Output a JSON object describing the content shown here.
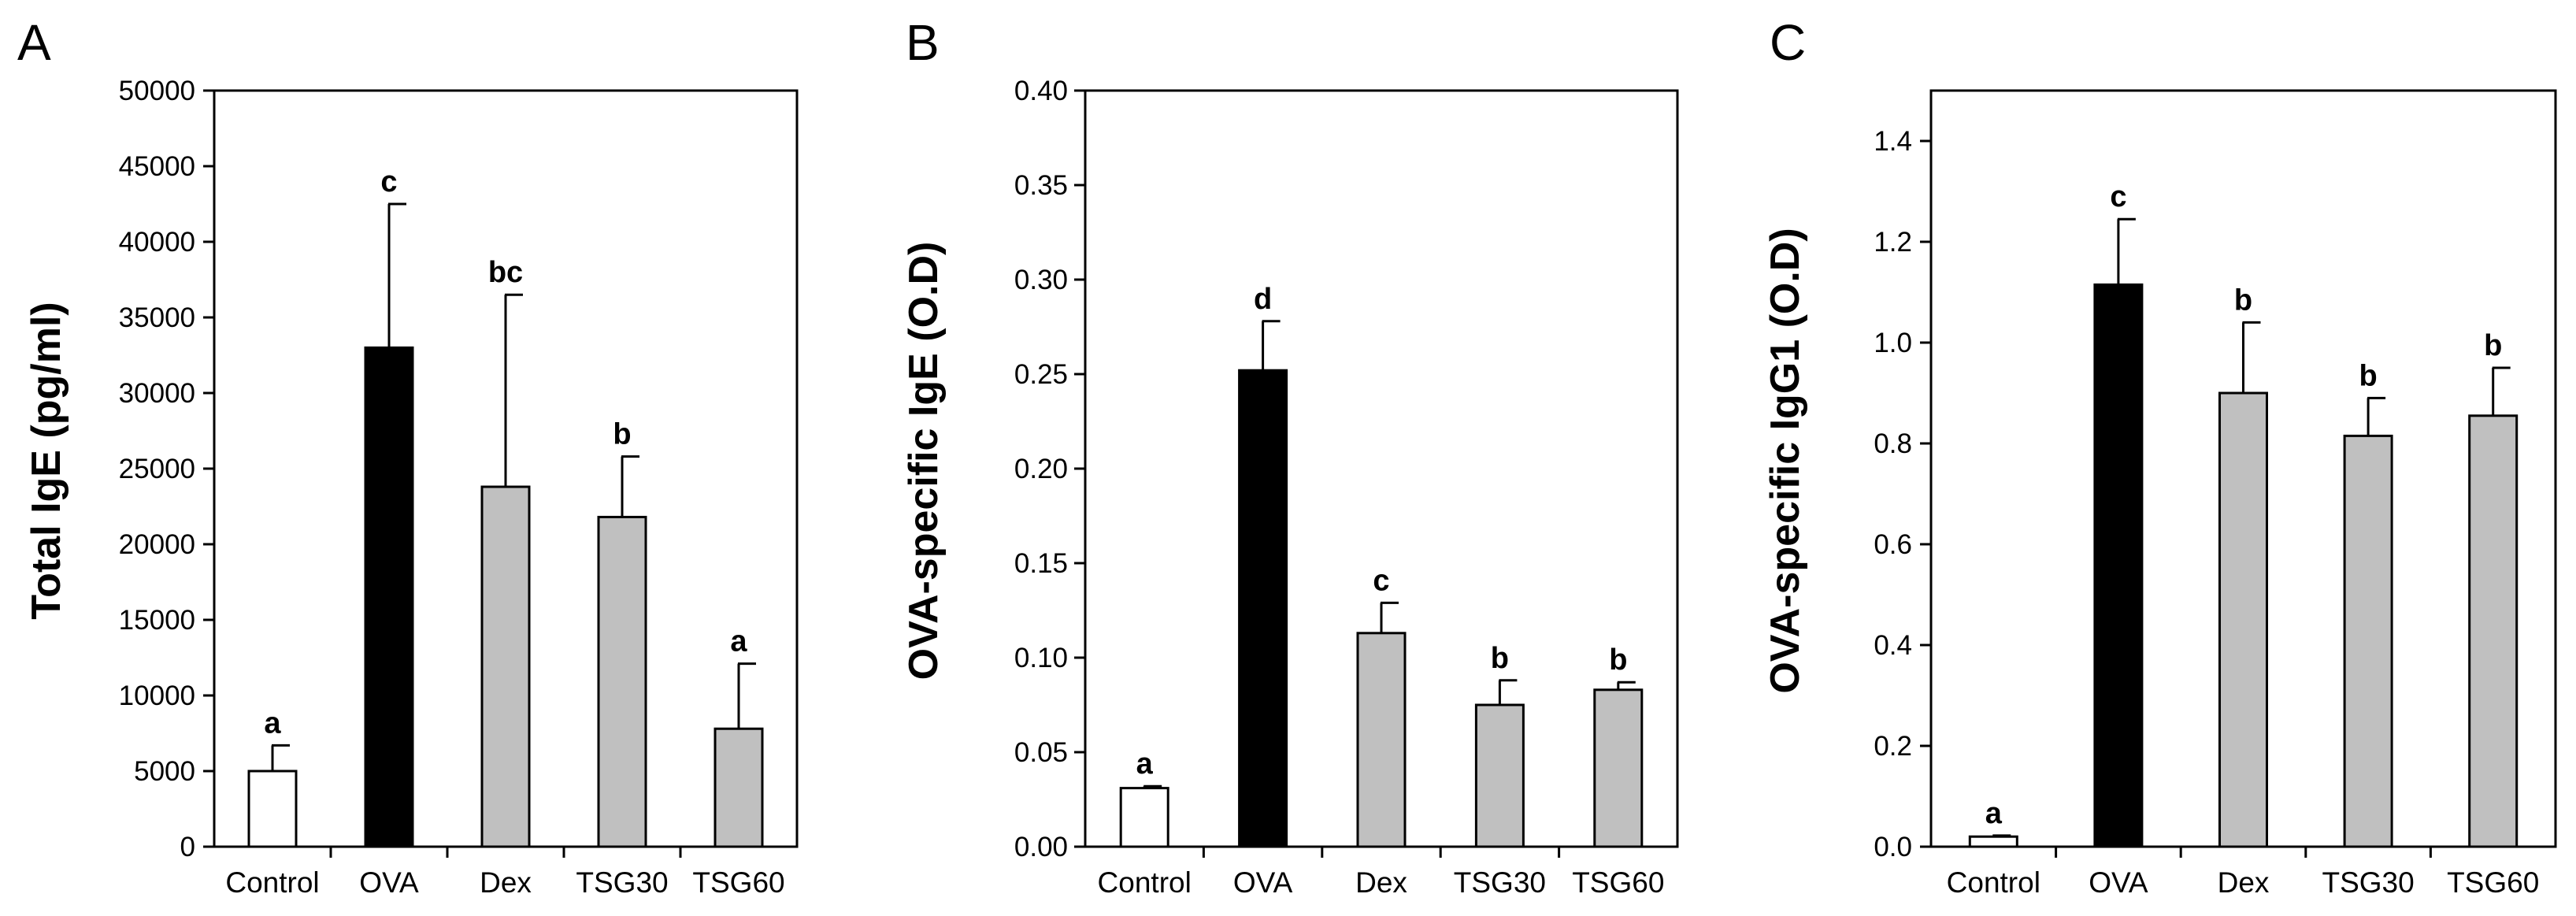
{
  "chart_data": [
    {
      "panel": "A",
      "type": "bar",
      "title": "",
      "xlabel": "",
      "ylabel": "Total IgE (pg/ml)",
      "categories": [
        "Control",
        "OVA",
        "Dex",
        "TSG30",
        "TSG60"
      ],
      "values": [
        5000,
        33000,
        23800,
        21800,
        7800
      ],
      "errors": [
        1700,
        9500,
        12700,
        4000,
        4300
      ],
      "letters": [
        "a",
        "c",
        "bc",
        "b",
        "a"
      ],
      "bar_colors": [
        "#ffffff",
        "#000000",
        "#c0c0c0",
        "#c0c0c0",
        "#c0c0c0"
      ],
      "ylim": [
        0,
        50000
      ],
      "yticks": [
        0,
        5000,
        10000,
        15000,
        20000,
        25000,
        30000,
        35000,
        40000,
        45000,
        50000
      ],
      "ytick_labels": [
        "0",
        "5000",
        "10000",
        "15000",
        "20000",
        "25000",
        "30000",
        "35000",
        "40000",
        "45000",
        "50000"
      ]
    },
    {
      "panel": "B",
      "type": "bar",
      "title": "",
      "xlabel": "",
      "ylabel": "OVA-specific IgE (O.D)",
      "categories": [
        "Control",
        "OVA",
        "Dex",
        "TSG30",
        "TSG60"
      ],
      "values": [
        0.031,
        0.252,
        0.113,
        0.075,
        0.083
      ],
      "errors": [
        0.001,
        0.026,
        0.016,
        0.013,
        0.004
      ],
      "letters": [
        "a",
        "d",
        "c",
        "b",
        "b"
      ],
      "bar_colors": [
        "#ffffff",
        "#000000",
        "#c0c0c0",
        "#c0c0c0",
        "#c0c0c0"
      ],
      "ylim": [
        0,
        0.4
      ],
      "yticks": [
        0,
        0.05,
        0.1,
        0.15,
        0.2,
        0.25,
        0.3,
        0.35,
        0.4
      ],
      "ytick_labels": [
        "0.00",
        "0.05",
        "0.10",
        "0.15",
        "0.20",
        "0.25",
        "0.30",
        "0.35",
        "0.40"
      ]
    },
    {
      "panel": "C",
      "type": "bar",
      "title": "",
      "xlabel": "",
      "ylabel": "OVA-specific IgG1 (O.D)",
      "categories": [
        "Control",
        "OVA",
        "Dex",
        "TSG30",
        "TSG60"
      ],
      "values": [
        0.02,
        1.115,
        0.9,
        0.815,
        0.855
      ],
      "errors": [
        0.002,
        0.13,
        0.14,
        0.075,
        0.095
      ],
      "letters": [
        "a",
        "c",
        "b",
        "b",
        "b"
      ],
      "bar_colors": [
        "#ffffff",
        "#000000",
        "#c0c0c0",
        "#c0c0c0",
        "#c0c0c0"
      ],
      "ylim": [
        0,
        1.5
      ],
      "yticks": [
        0,
        0.2,
        0.4,
        0.6,
        0.8,
        1.0,
        1.2,
        1.4
      ],
      "ytick_labels": [
        "0.0",
        "0.2",
        "0.4",
        "0.6",
        "0.8",
        "1.0",
        "1.2",
        "1.4"
      ]
    }
  ]
}
